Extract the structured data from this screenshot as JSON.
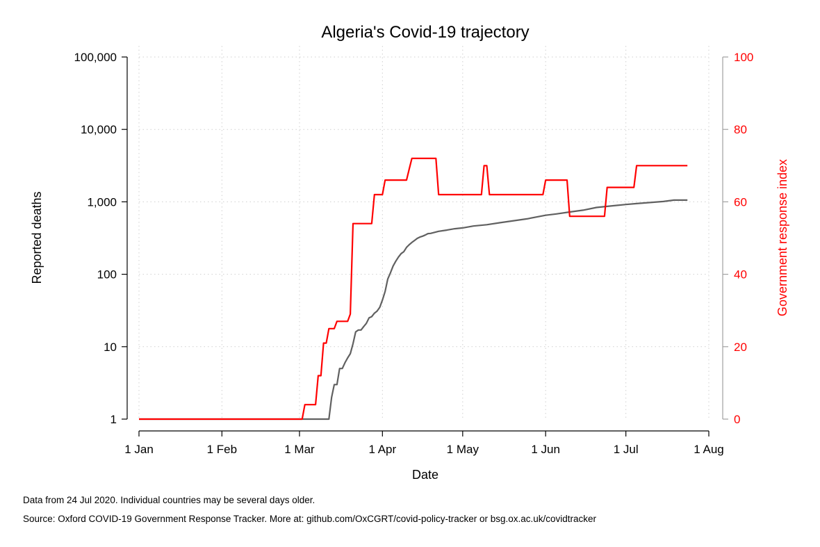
{
  "chart_data": {
    "type": "line",
    "title": "Algeria's Covid-19 trajectory",
    "xlabel": "Date",
    "ylabel": "Reported deaths",
    "ylabel_right": "Government response index",
    "x_ticks": [
      "1 Jan",
      "1 Feb",
      "1 Mar",
      "1 Apr",
      "1 May",
      "1 Jun",
      "1 Jul",
      "1 Aug"
    ],
    "x_tick_dates": [
      "2020-01-01",
      "2020-02-01",
      "2020-03-01",
      "2020-04-01",
      "2020-05-01",
      "2020-06-01",
      "2020-07-01",
      "2020-08-01"
    ],
    "xlim": [
      "2020-01-01",
      "2020-08-01"
    ],
    "y_scale": "log",
    "ylim": [
      1,
      100000
    ],
    "y_ticks": [
      1,
      10,
      100,
      1000,
      10000,
      100000
    ],
    "y_tick_labels": [
      "1",
      "10",
      "100",
      "1,000",
      "10,000",
      "100,000"
    ],
    "y2_ylim": [
      0,
      100
    ],
    "y2_ticks": [
      "0",
      "20",
      "40",
      "60",
      "80",
      "100"
    ],
    "grid": true,
    "series": [
      {
        "axis": "left",
        "color": "#606060",
        "points": [
          [
            "2020-01-01",
            1
          ],
          [
            "2020-03-12",
            1
          ],
          [
            "2020-03-13",
            2
          ],
          [
            "2020-03-14",
            3
          ],
          [
            "2020-03-15",
            3
          ],
          [
            "2020-03-16",
            5
          ],
          [
            "2020-03-17",
            5
          ],
          [
            "2020-03-18",
            6
          ],
          [
            "2020-03-19",
            7
          ],
          [
            "2020-03-20",
            8
          ],
          [
            "2020-03-21",
            11
          ],
          [
            "2020-03-22",
            16
          ],
          [
            "2020-03-23",
            17
          ],
          [
            "2020-03-24",
            17
          ],
          [
            "2020-03-25",
            19
          ],
          [
            "2020-03-26",
            21
          ],
          [
            "2020-03-27",
            25
          ],
          [
            "2020-03-28",
            26
          ],
          [
            "2020-03-29",
            29
          ],
          [
            "2020-03-30",
            31
          ],
          [
            "2020-03-31",
            35
          ],
          [
            "2020-04-01",
            44
          ],
          [
            "2020-04-02",
            58
          ],
          [
            "2020-04-03",
            86
          ],
          [
            "2020-04-04",
            105
          ],
          [
            "2020-04-05",
            130
          ],
          [
            "2020-04-06",
            152
          ],
          [
            "2020-04-07",
            173
          ],
          [
            "2020-04-08",
            193
          ],
          [
            "2020-04-09",
            205
          ],
          [
            "2020-04-10",
            235
          ],
          [
            "2020-04-11",
            256
          ],
          [
            "2020-04-12",
            275
          ],
          [
            "2020-04-13",
            293
          ],
          [
            "2020-04-14",
            313
          ],
          [
            "2020-04-15",
            326
          ],
          [
            "2020-04-16",
            336
          ],
          [
            "2020-04-17",
            348
          ],
          [
            "2020-04-18",
            364
          ],
          [
            "2020-04-19",
            367
          ],
          [
            "2020-04-20",
            375
          ],
          [
            "2020-04-22",
            392
          ],
          [
            "2020-04-25",
            407
          ],
          [
            "2020-04-28",
            425
          ],
          [
            "2020-05-01",
            437
          ],
          [
            "2020-05-05",
            463
          ],
          [
            "2020-05-10",
            483
          ],
          [
            "2020-05-15",
            515
          ],
          [
            "2020-05-20",
            548
          ],
          [
            "2020-05-25",
            582
          ],
          [
            "2020-06-01",
            653
          ],
          [
            "2020-06-05",
            681
          ],
          [
            "2020-06-10",
            724
          ],
          [
            "2020-06-15",
            767
          ],
          [
            "2020-06-20",
            836
          ],
          [
            "2020-06-25",
            873
          ],
          [
            "2020-07-01",
            920
          ],
          [
            "2020-07-05",
            946
          ],
          [
            "2020-07-10",
            979
          ],
          [
            "2020-07-15",
            1011
          ],
          [
            "2020-07-19",
            1057
          ],
          [
            "2020-07-24",
            1057
          ]
        ]
      },
      {
        "axis": "right",
        "color": "#ff0000",
        "points": [
          [
            "2020-01-01",
            0
          ],
          [
            "2020-03-02",
            0
          ],
          [
            "2020-03-03",
            4
          ],
          [
            "2020-03-07",
            4
          ],
          [
            "2020-03-08",
            12
          ],
          [
            "2020-03-09",
            12
          ],
          [
            "2020-03-10",
            21
          ],
          [
            "2020-03-11",
            21
          ],
          [
            "2020-03-12",
            25
          ],
          [
            "2020-03-14",
            25
          ],
          [
            "2020-03-15",
            27
          ],
          [
            "2020-03-19",
            27
          ],
          [
            "2020-03-20",
            29
          ],
          [
            "2020-03-21",
            54
          ],
          [
            "2020-03-28",
            54
          ],
          [
            "2020-03-29",
            62
          ],
          [
            "2020-04-01",
            62
          ],
          [
            "2020-04-02",
            66
          ],
          [
            "2020-04-10",
            66
          ],
          [
            "2020-04-11",
            69
          ],
          [
            "2020-04-12",
            72
          ],
          [
            "2020-04-21",
            72
          ],
          [
            "2020-04-22",
            62
          ],
          [
            "2020-05-08",
            62
          ],
          [
            "2020-05-09",
            70
          ],
          [
            "2020-05-10",
            70
          ],
          [
            "2020-05-11",
            62
          ],
          [
            "2020-05-31",
            62
          ],
          [
            "2020-06-01",
            66
          ],
          [
            "2020-06-09",
            66
          ],
          [
            "2020-06-10",
            56
          ],
          [
            "2020-06-23",
            56
          ],
          [
            "2020-06-24",
            64
          ],
          [
            "2020-07-04",
            64
          ],
          [
            "2020-07-05",
            70
          ],
          [
            "2020-07-24",
            70
          ]
        ]
      }
    ]
  },
  "footer": {
    "note": "Data from 24 Jul 2020. Individual countries may be several days older.",
    "source": "Source: Oxford COVID-19 Government Response Tracker. More at: github.com/OxCGRT/covid-policy-tracker or bsg.ox.ac.uk/covidtracker"
  }
}
